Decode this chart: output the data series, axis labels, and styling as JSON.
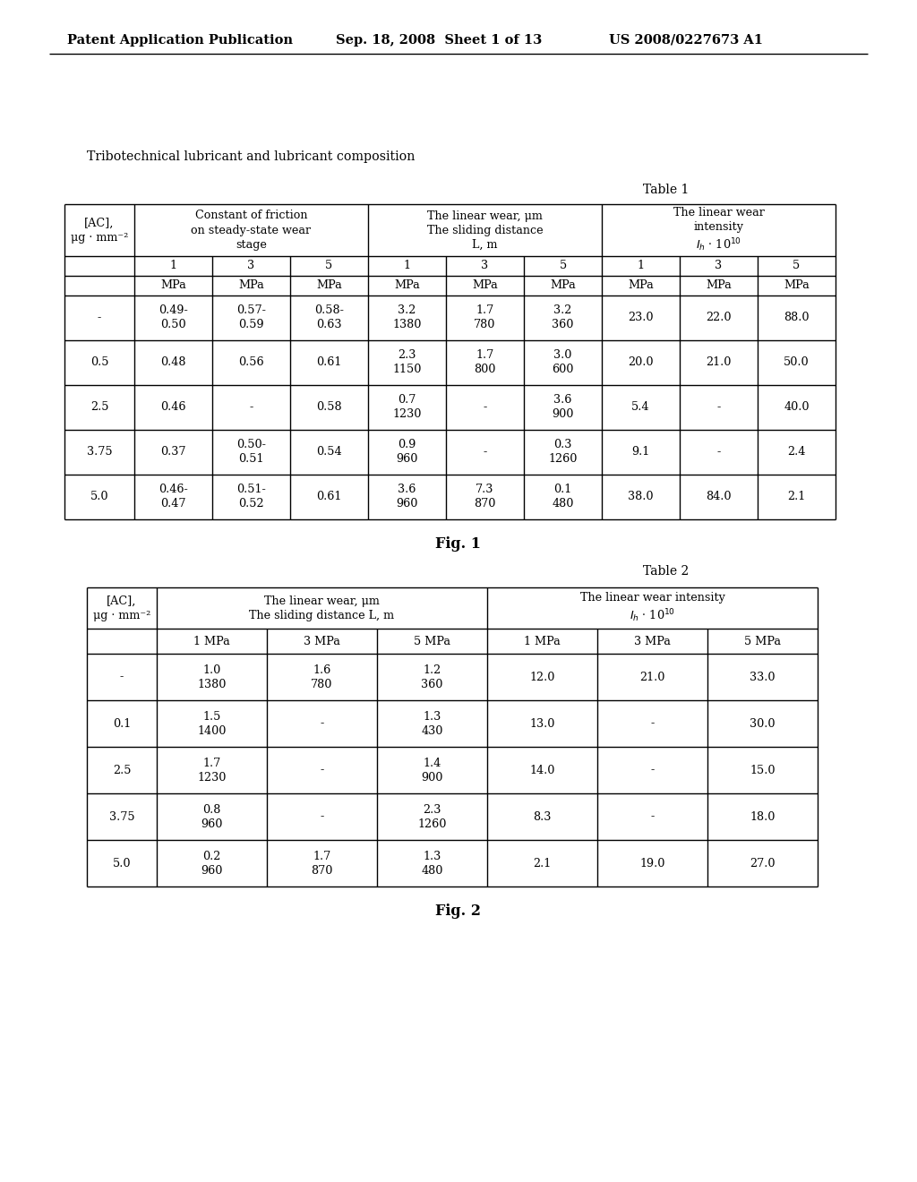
{
  "background_color": "#ffffff",
  "header_left": "Patent Application Publication",
  "header_center": "Sep. 18, 2008  Sheet 1 of 13",
  "header_right": "US 2008/0227673 A1",
  "subtitle": "Tribotechnical lubricant and lubricant composition",
  "table1_label": "Table 1",
  "table2_label": "Table 2",
  "fig1_label": "Fig. 1",
  "fig2_label": "Fig. 2",
  "table1": {
    "rows": [
      [
        "-",
        "0.49-\n0.50",
        "0.57-\n0.59",
        "0.58-\n0.63",
        "3.2\n1380",
        "1.7\n780",
        "3.2\n360",
        "23.0",
        "22.0",
        "88.0"
      ],
      [
        "0.5",
        "0.48",
        "0.56",
        "0.61",
        "2.3\n1150",
        "1.7\n800",
        "3.0\n600",
        "20.0",
        "21.0",
        "50.0"
      ],
      [
        "2.5",
        "0.46",
        "-",
        "0.58",
        "0.7\n1230",
        "-",
        "3.6\n900",
        "5.4",
        "-",
        "40.0"
      ],
      [
        "3.75",
        "0.37",
        "0.50-\n0.51",
        "0.54",
        "0.9\n960",
        "-",
        "0.3\n1260",
        "9.1",
        "-",
        "2.4"
      ],
      [
        "5.0",
        "0.46-\n0.47",
        "0.51-\n0.52",
        "0.61",
        "3.6\n960",
        "7.3\n870",
        "0.1\n480",
        "38.0",
        "84.0",
        "2.1"
      ]
    ]
  },
  "table2": {
    "rows": [
      [
        "-",
        "1.0\n1380",
        "1.6\n780",
        "1.2\n360",
        "12.0",
        "21.0",
        "33.0"
      ],
      [
        "0.1",
        "1.5\n1400",
        "-",
        "1.3\n430",
        "13.0",
        "-",
        "30.0"
      ],
      [
        "2.5",
        "1.7\n1230",
        "-",
        "1.4\n900",
        "14.0",
        "-",
        "15.0"
      ],
      [
        "3.75",
        "0.8\n960",
        "-",
        "2.3\n1260",
        "8.3",
        "-",
        "18.0"
      ],
      [
        "5.0",
        "0.2\n960",
        "1.7\n870",
        "1.3\n480",
        "2.1",
        "19.0",
        "27.0"
      ]
    ]
  }
}
